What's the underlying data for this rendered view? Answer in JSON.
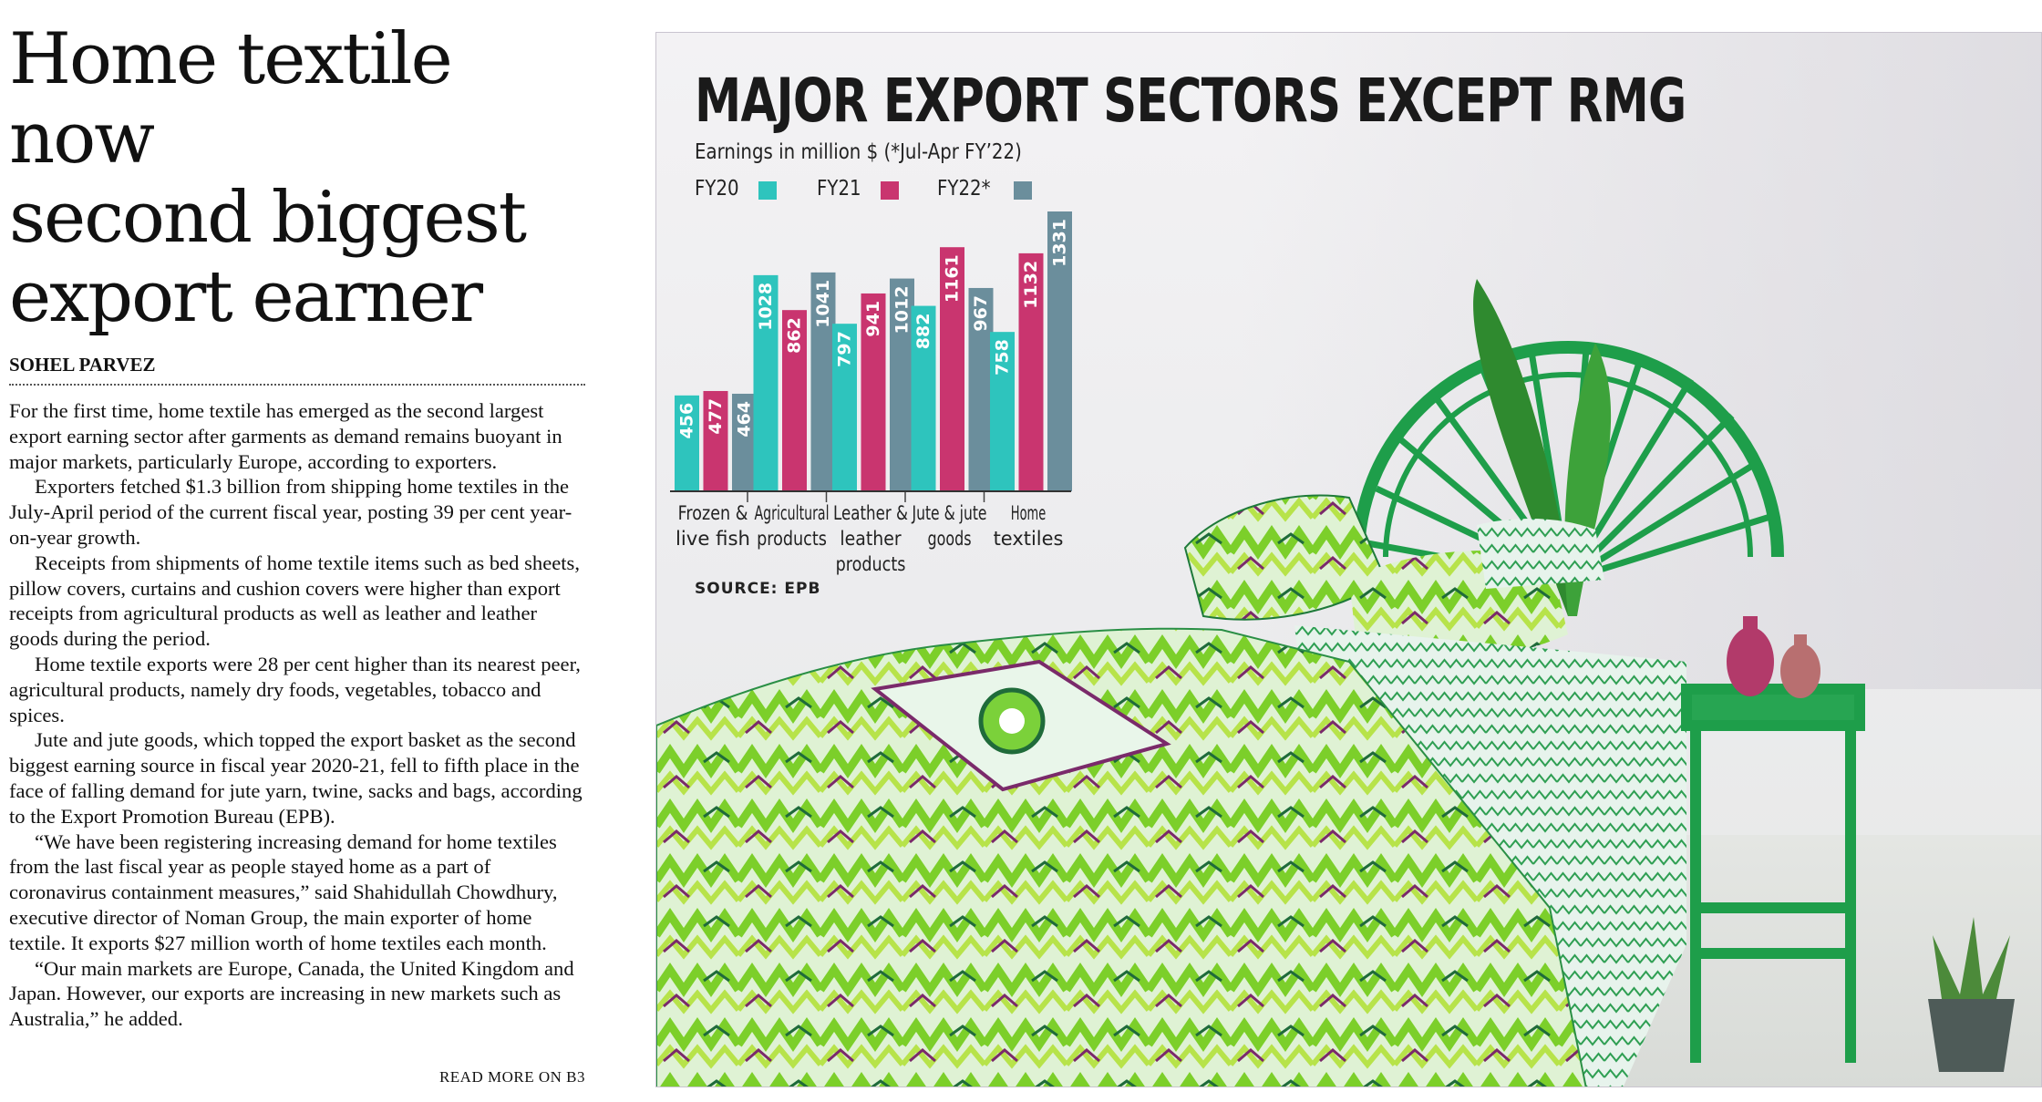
{
  "article": {
    "headline": [
      "Home textile now",
      "second biggest",
      "export earner"
    ],
    "byline": "SOHEL PARVEZ",
    "paragraphs": [
      "For the first time, home textile has emerged as the second largest export earning sector after garments as demand remains buoyant in major markets, particularly Europe, according to exporters.",
      "Exporters fetched $1.3 billion from shipping home textiles in the July-April period of the current fiscal year, posting 39 per cent year-on-year growth.",
      "Receipts from shipments of home textile items such as bed sheets, pillow covers, curtains and cushion covers were higher than export receipts from agricultural products as well as leather and leather goods during the period.",
      "Home textile exports were 28 per cent higher than its nearest peer, agricultural products, namely dry foods, vegetables, tobacco and spices.",
      "Jute and jute goods, which topped the export basket as the second biggest earning source in fiscal year 2020-21, fell to fifth place in the face of falling demand for jute yarn, twine, sacks and bags, according to the Export Promotion Bureau (EPB).",
      "“We have been registering increasing demand for home textiles from the last fiscal year as people stayed home as a part of coronavirus containment measures,” said Shahidullah Chowdhury, executive director of Noman Group, the main exporter of home textile. It exports $27 million worth of home textiles each month.",
      "“Our main markets are Europe, Canada, the United Kingdom and Japan. However, our exports are increasing in new markets such as Australia,” he added."
    ],
    "read_more": "READ MORE ON B3"
  },
  "chart_data": {
    "type": "bar",
    "title": "MAJOR EXPORT SECTORS EXCEPT RMG",
    "subtitle": "Earnings in million $ (*Jul-Apr FY’22)",
    "categories": [
      "Frozen &\nlive fish",
      "Agricultural\nproducts",
      "Leather &\nleather\nproducts",
      "Jute & jute\ngoods",
      "Home\ntextiles"
    ],
    "series": [
      {
        "name": "FY20",
        "color": "#2ec4bd",
        "values": [
          456,
          1028,
          797,
          882,
          758
        ]
      },
      {
        "name": "FY21",
        "color": "#c9356f",
        "values": [
          477,
          862,
          941,
          1161,
          1132
        ]
      },
      {
        "name": "FY22*",
        "color": "#6b8e9c",
        "values": [
          464,
          1041,
          1012,
          967,
          1331
        ]
      }
    ],
    "ylim": [
      0,
      1331
    ],
    "grid": false,
    "data_labels": true,
    "legend_position": "top-left",
    "source": "SOURCE: EPB"
  }
}
